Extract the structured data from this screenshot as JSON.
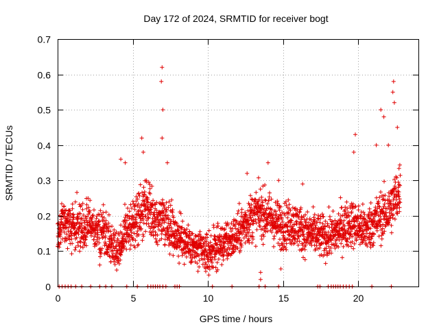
{
  "chart_data": {
    "type": "scatter",
    "title": "Day 172 of 2024, SRMTID for receiver bogt",
    "xlabel": "GPS time / hours",
    "ylabel": "SRMTID / TECUs",
    "xlim": [
      0,
      24
    ],
    "ylim": [
      0,
      0.7
    ],
    "xticks": [
      0,
      5,
      10,
      15,
      20
    ],
    "xtick_labels": [
      "0",
      "5",
      "10",
      "15",
      "20"
    ],
    "yticks": [
      0,
      0.1,
      0.2,
      0.3,
      0.4,
      0.5,
      0.6,
      0.7
    ],
    "ytick_labels": [
      "0",
      "0.1",
      "0.2",
      "0.3",
      "0.4",
      "0.5",
      "0.6",
      "0.7"
    ],
    "grid": true,
    "marker": "+",
    "color": "#e00000",
    "series_name": "SRMTID",
    "profile_hours": [
      0,
      0.5,
      1,
      1.5,
      2,
      2.5,
      3,
      3.5,
      4,
      4.5,
      5,
      5.5,
      6,
      6.5,
      7,
      7.5,
      8,
      8.5,
      9,
      9.5,
      10,
      10.5,
      11,
      11.5,
      12,
      12.5,
      13,
      13.5,
      14,
      14.5,
      15,
      15.5,
      16,
      16.5,
      17,
      17.5,
      18,
      18.5,
      19,
      19.5,
      20,
      20.5,
      21,
      21.5,
      22,
      22.5,
      22.8
    ],
    "profile_srmtid": [
      0.16,
      0.18,
      0.17,
      0.17,
      0.18,
      0.16,
      0.15,
      0.13,
      0.1,
      0.16,
      0.17,
      0.2,
      0.22,
      0.18,
      0.2,
      0.17,
      0.14,
      0.13,
      0.11,
      0.1,
      0.09,
      0.11,
      0.12,
      0.13,
      0.15,
      0.18,
      0.2,
      0.21,
      0.2,
      0.18,
      0.17,
      0.18,
      0.17,
      0.15,
      0.15,
      0.14,
      0.14,
      0.15,
      0.17,
      0.18,
      0.17,
      0.16,
      0.18,
      0.2,
      0.21,
      0.25,
      0.28
    ],
    "spread": 0.07,
    "points_per_hour": 110,
    "peaks": [
      {
        "x": 4.2,
        "y": 0.36
      },
      {
        "x": 4.5,
        "y": 0.35
      },
      {
        "x": 5.6,
        "y": 0.42
      },
      {
        "x": 5.7,
        "y": 0.38
      },
      {
        "x": 6.95,
        "y": 0.62
      },
      {
        "x": 6.9,
        "y": 0.58
      },
      {
        "x": 7.0,
        "y": 0.5
      },
      {
        "x": 6.95,
        "y": 0.42
      },
      {
        "x": 7.3,
        "y": 0.35
      },
      {
        "x": 12.6,
        "y": 0.32
      },
      {
        "x": 14.0,
        "y": 0.35
      },
      {
        "x": 14.7,
        "y": 0.3
      },
      {
        "x": 16.3,
        "y": 0.29
      },
      {
        "x": 19.8,
        "y": 0.43
      },
      {
        "x": 19.7,
        "y": 0.38
      },
      {
        "x": 21.2,
        "y": 0.4
      },
      {
        "x": 21.5,
        "y": 0.5
      },
      {
        "x": 21.7,
        "y": 0.48
      },
      {
        "x": 22.0,
        "y": 0.4
      },
      {
        "x": 22.3,
        "y": 0.55
      },
      {
        "x": 22.35,
        "y": 0.58
      },
      {
        "x": 22.4,
        "y": 0.52
      },
      {
        "x": 22.6,
        "y": 0.45
      },
      {
        "x": 13.5,
        "y": 0.04
      },
      {
        "x": 13.5,
        "y": 0.02
      },
      {
        "x": 14.85,
        "y": 0.05
      },
      {
        "x": 7.75,
        "y": 0.12
      }
    ],
    "zero_hours": [
      0.1,
      0.3,
      0.5,
      0.7,
      0.9,
      1.2,
      1.6,
      2.2,
      2.8,
      3.2,
      3.6,
      4.6,
      5.3,
      6.0,
      6.2,
      6.35,
      6.5,
      6.65,
      6.8,
      7.0,
      7.2,
      7.8,
      7.95,
      8.1,
      10.3,
      11.6,
      13.4,
      13.8,
      14.7,
      17.3,
      17.45,
      18.0,
      18.2,
      18.35,
      18.5,
      18.65,
      18.8,
      19.0,
      19.2,
      19.4,
      19.6,
      20.9,
      22.2
    ]
  }
}
